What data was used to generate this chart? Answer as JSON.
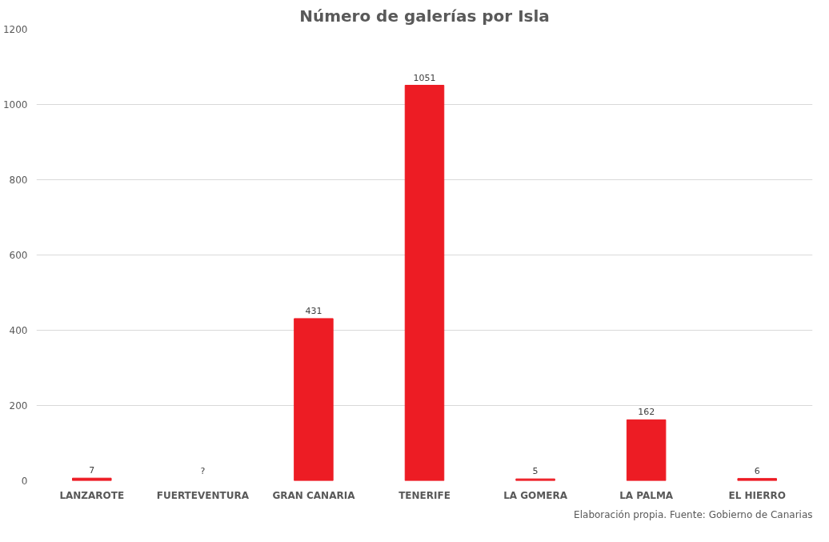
{
  "chart_data": {
    "type": "bar",
    "title": "Número de galerías por Isla",
    "categories": [
      "LANZAROTE",
      "FUERTEVENTURA",
      "GRAN CANARIA",
      "TENERIFE",
      "LA GOMERA",
      "LA PALMA",
      "EL HIERRO"
    ],
    "values": [
      7,
      null,
      431,
      1051,
      5,
      162,
      6
    ],
    "value_labels": [
      "7",
      "?",
      "431",
      "1051",
      "5",
      "162",
      "6"
    ],
    "color": "#ed1c24",
    "ylim": [
      0,
      1200
    ],
    "yticks": [
      0,
      200,
      400,
      600,
      800,
      1000,
      1200
    ],
    "grid": "y",
    "annotations": [
      "Elaboración propia. Fuente: Gobierno de Canarias"
    ]
  }
}
